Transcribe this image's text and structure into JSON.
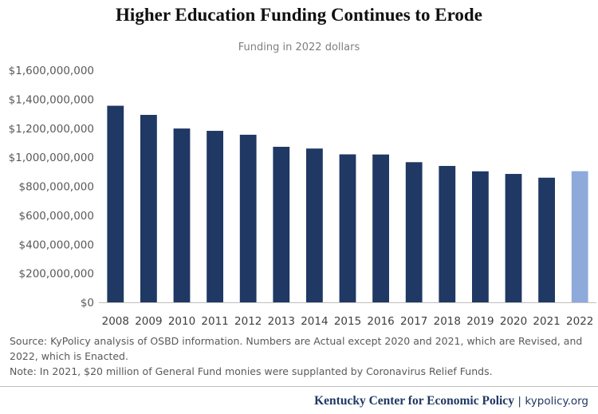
{
  "colors": {
    "bar": "#1f3864",
    "bar_highlight": "#8eaadb",
    "axis": "#bfbfbf"
  },
  "chart_data": {
    "type": "bar",
    "title": "Higher Education Funding Continues to Erode",
    "subtitle": "Funding in 2022 dollars",
    "xlabel": "",
    "ylabel": "",
    "categories": [
      "2008",
      "2009",
      "2010",
      "2011",
      "2012",
      "2013",
      "2014",
      "2015",
      "2016",
      "2017",
      "2018",
      "2019",
      "2020",
      "2021",
      "2022"
    ],
    "values": [
      1355000000,
      1292000000,
      1198000000,
      1182000000,
      1155000000,
      1072000000,
      1060000000,
      1020000000,
      1019000000,
      966000000,
      940000000,
      903000000,
      885000000,
      859000000,
      904000000
    ],
    "highlight_index": 14,
    "ylim": [
      0,
      1600000000
    ],
    "yticks": [
      {
        "value": 0,
        "label": "$0"
      },
      {
        "value": 200000000,
        "label": "$200,000,000"
      },
      {
        "value": 400000000,
        "label": "$400,000,000"
      },
      {
        "value": 600000000,
        "label": "$600,000,000"
      },
      {
        "value": 800000000,
        "label": "$800,000,000"
      },
      {
        "value": 1000000000,
        "label": "$1,000,000,000"
      },
      {
        "value": 1200000000,
        "label": "$1,200,000,000"
      },
      {
        "value": 1400000000,
        "label": "$1,400,000,000"
      },
      {
        "value": 1600000000,
        "label": "$1,600,000,000"
      }
    ],
    "grid": false,
    "legend": "none"
  },
  "notes": {
    "source": "Source: KyPolicy analysis of OSBD information. Numbers are Actual except 2020 and 2021, which are Revised, and 2022, which is Enacted.",
    "note": "Note: In 2021, $20 million of General Fund monies were supplanted by Coronavirus Relief Funds."
  },
  "footer": {
    "org": "Kentucky Center for Economic Policy",
    "separator": "|",
    "site": "kypolicy.org"
  }
}
